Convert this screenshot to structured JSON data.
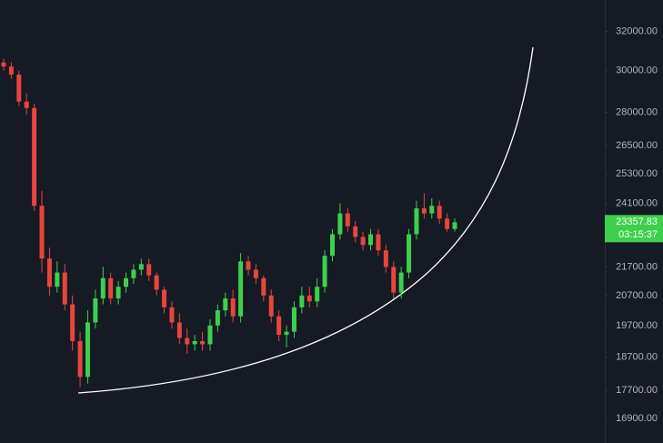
{
  "chart_data": {
    "type": "candlestick",
    "log_scale": true,
    "grid": false,
    "up_color": "#3ecf4c",
    "down_color": "#e8453c",
    "open": [
      30400,
      30200,
      29800,
      28500,
      28200,
      24000,
      22000,
      21000,
      21500,
      20400,
      19200,
      18100,
      19800,
      20600,
      21300,
      20600,
      21000,
      21300,
      21600,
      21800,
      21400,
      20900,
      20300,
      19800,
      19300,
      19100,
      19200,
      19100,
      19700,
      20200,
      20600,
      20000,
      21900,
      21600,
      21300,
      20700,
      20000,
      19400,
      19500,
      20300,
      20700,
      20500,
      21000,
      22100,
      22900,
      23700,
      23200,
      22800,
      22500,
      22900,
      22300,
      21700,
      20800,
      21500,
      22900,
      23900,
      23700,
      24000,
      23500,
      23100
    ],
    "high": [
      30600,
      30400,
      30000,
      28900,
      28400,
      24600,
      22400,
      21900,
      21800,
      20700,
      19500,
      20200,
      20900,
      21700,
      21500,
      21200,
      21500,
      21800,
      22000,
      22000,
      21500,
      21000,
      20500,
      20100,
      19600,
      19400,
      19500,
      19900,
      20400,
      20800,
      20900,
      22200,
      22100,
      21800,
      21400,
      20900,
      20200,
      19700,
      20500,
      21000,
      21000,
      21300,
      22300,
      23100,
      24100,
      23900,
      23400,
      23000,
      23100,
      23100,
      22500,
      21900,
      21700,
      23100,
      24200,
      24500,
      24300,
      24200,
      23700,
      23500
    ],
    "low": [
      30000,
      29600,
      28300,
      27900,
      23800,
      21500,
      20700,
      20800,
      20200,
      18900,
      17800,
      17900,
      19600,
      20400,
      20400,
      20400,
      20800,
      21100,
      21400,
      21200,
      20700,
      20100,
      19600,
      19100,
      18800,
      18900,
      18900,
      18900,
      19500,
      20000,
      19800,
      19800,
      21400,
      21100,
      20500,
      19800,
      19200,
      19000,
      19300,
      20100,
      20300,
      20300,
      20800,
      21900,
      22700,
      23000,
      22600,
      22300,
      22300,
      22100,
      21500,
      20600,
      20600,
      21300,
      22700,
      23500,
      23500,
      23300,
      23000,
      23000
    ],
    "close": [
      30200,
      29800,
      28500,
      28200,
      24000,
      22000,
      21000,
      21500,
      20400,
      19200,
      18100,
      19800,
      20600,
      21300,
      20600,
      21000,
      21300,
      21600,
      21800,
      21400,
      20900,
      20300,
      19800,
      19300,
      19100,
      19200,
      19100,
      19700,
      20200,
      20600,
      20000,
      21900,
      21600,
      21300,
      20700,
      20000,
      19400,
      19500,
      20300,
      20700,
      20500,
      21000,
      22100,
      22900,
      23700,
      23200,
      22800,
      22500,
      22900,
      22300,
      21700,
      20800,
      21500,
      22900,
      23900,
      23700,
      24000,
      23500,
      23100,
      23357.83
    ],
    "ylim": [
      16230,
      33700
    ],
    "yticks": [
      {
        "value": 32000,
        "label": "32000.00"
      },
      {
        "value": 30000,
        "label": "30000.00"
      },
      {
        "value": 28000,
        "label": "28000.00"
      },
      {
        "value": 26500,
        "label": "26500.00"
      },
      {
        "value": 25300,
        "label": "25300.00"
      },
      {
        "value": 24100,
        "label": "24100.00"
      },
      {
        "value": 21700,
        "label": "21700.00"
      },
      {
        "value": 20700,
        "label": "20700.00"
      },
      {
        "value": 19700,
        "label": "19700.00"
      },
      {
        "value": 18700,
        "label": "18700.00"
      },
      {
        "value": 17700,
        "label": "17700.00"
      },
      {
        "value": 16900,
        "label": "16900.00"
      }
    ],
    "last_price": 23357.83,
    "countdown": "03:15:37"
  }
}
